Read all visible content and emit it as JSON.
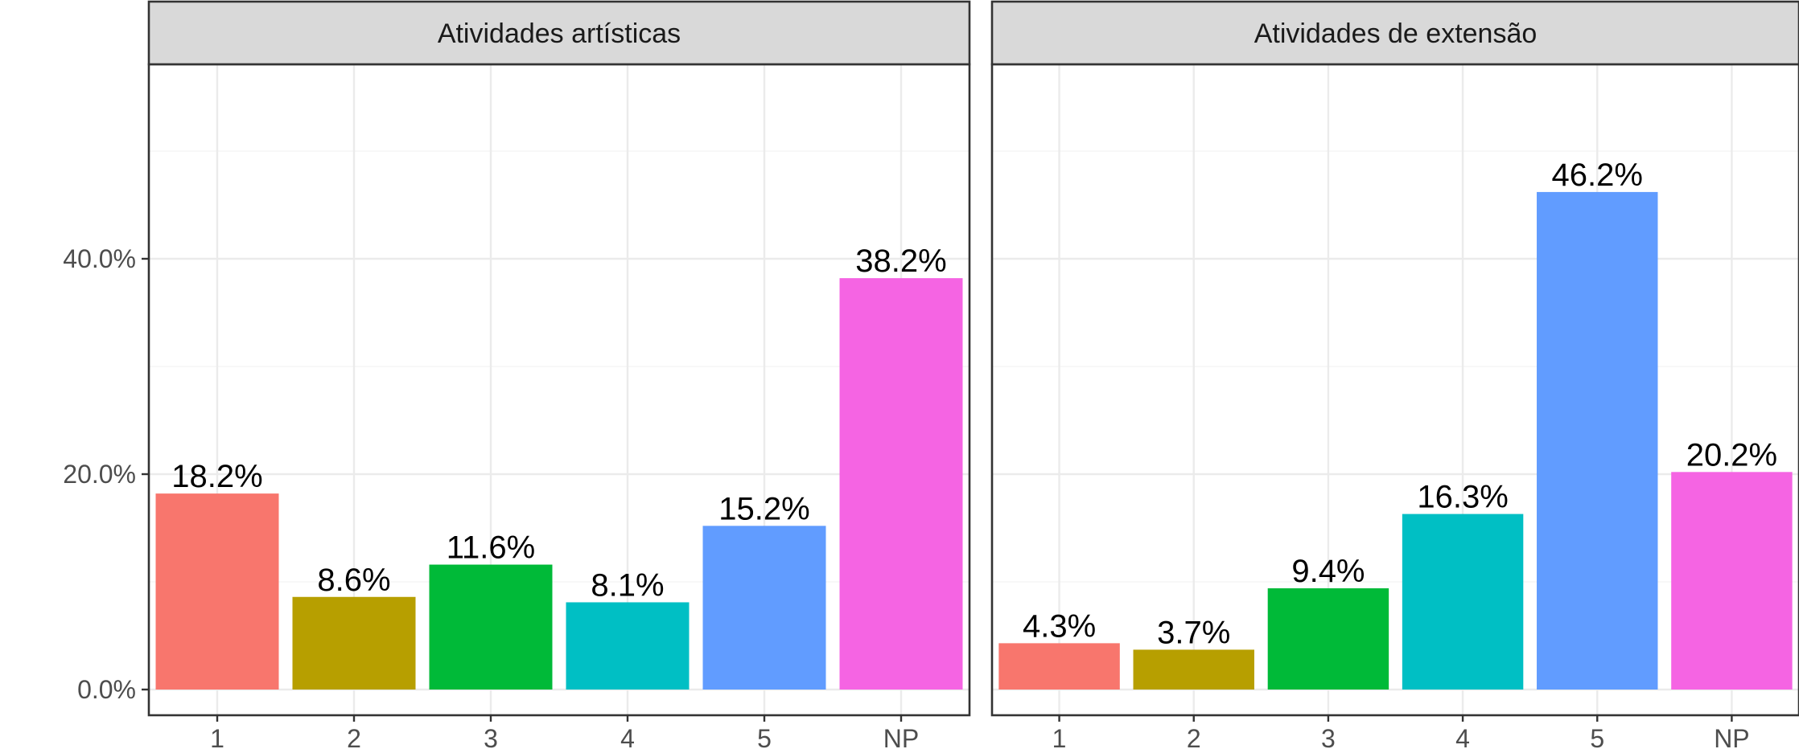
{
  "chart_data": {
    "type": "bar",
    "categories": [
      "1",
      "2",
      "3",
      "4",
      "5",
      "NP"
    ],
    "colors": [
      "#F8766D",
      "#B79F00",
      "#00BA38",
      "#00BFC4",
      "#619CFF",
      "#F564E3"
    ],
    "y_axis": {
      "ticks": [
        0,
        20,
        40
      ],
      "tick_labels": [
        "0.0%",
        "20.0%",
        "40.0%"
      ],
      "ylim": [
        0,
        58
      ],
      "grid": true
    },
    "panels": [
      {
        "title": "Atividades artísticas",
        "values": [
          18.2,
          8.6,
          11.6,
          8.1,
          15.2,
          38.2
        ],
        "value_labels": [
          "18.2%",
          "8.6%",
          "11.6%",
          "8.1%",
          "15.2%",
          "38.2%"
        ]
      },
      {
        "title": "Atividades de extensão",
        "values": [
          4.3,
          3.7,
          9.4,
          16.3,
          46.2,
          20.2
        ],
        "value_labels": [
          "4.3%",
          "3.7%",
          "9.4%",
          "16.3%",
          "46.2%",
          "20.2%"
        ]
      }
    ]
  }
}
